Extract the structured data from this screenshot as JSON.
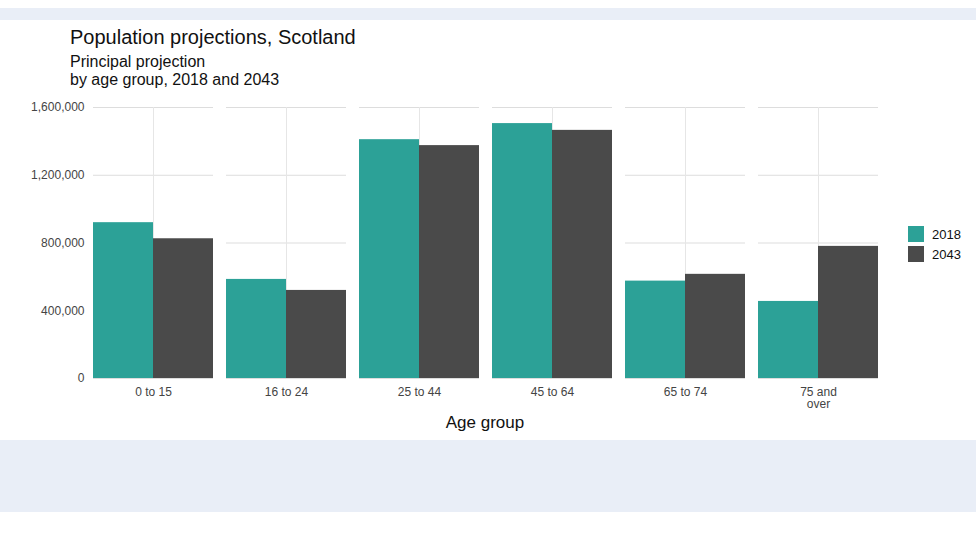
{
  "chart_data": {
    "type": "bar",
    "title": "Population projections, Scotland",
    "subtitle": "Principal projection\nby age group, 2018 and 2043",
    "x_label": "Age group",
    "categories": [
      "0 to 15",
      "16 to 24",
      "25 to 44",
      "45 to 64",
      "65 to 74",
      "75 and over"
    ],
    "series": [
      {
        "name": "2018",
        "color": "#2ca197",
        "values": [
          920000,
          585000,
          1410000,
          1505000,
          575000,
          455000
        ]
      },
      {
        "name": "2043",
        "color": "#4a4a4a",
        "values": [
          825000,
          520000,
          1375000,
          1465000,
          615000,
          780000
        ]
      }
    ],
    "ylim": [
      0,
      1600000
    ],
    "yticks": [
      0,
      {
        "value": 400000,
        "label": "400,000"
      },
      {
        "value": 800000,
        "label": "800,000"
      },
      {
        "value": 1200000,
        "label": "1,200,000"
      },
      {
        "value": 1600000,
        "label": "1,600,000"
      }
    ],
    "grid": true,
    "legend": "right"
  }
}
